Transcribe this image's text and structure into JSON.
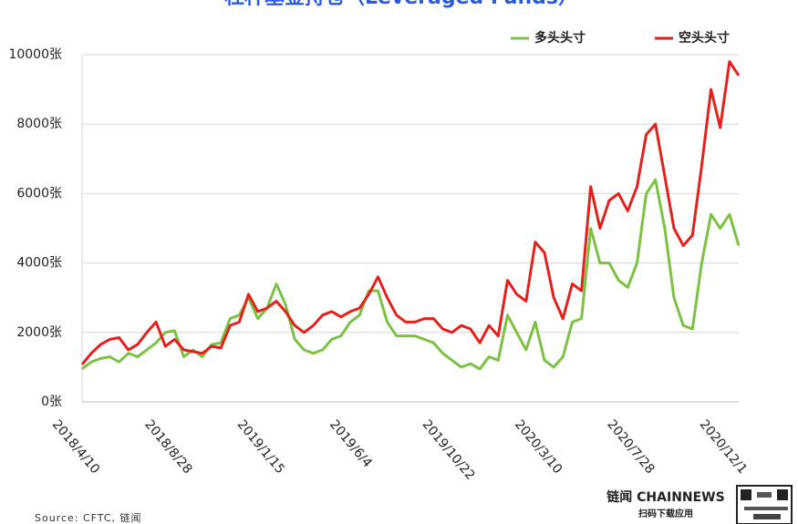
{
  "chart_data": {
    "type": "line",
    "title": "杠杆基金持仓（Leveraged Funds）",
    "categories": [
      "2018/4/10",
      null,
      null,
      null,
      null,
      null,
      null,
      null,
      null,
      null,
      "2018/8/28",
      null,
      null,
      null,
      null,
      null,
      null,
      null,
      null,
      null,
      "2019/1/15",
      null,
      null,
      null,
      null,
      null,
      null,
      null,
      null,
      null,
      "2019/6/4",
      null,
      null,
      null,
      null,
      null,
      null,
      null,
      null,
      null,
      "2019/10/22",
      null,
      null,
      null,
      null,
      null,
      null,
      null,
      null,
      null,
      "2020/3/10",
      null,
      null,
      null,
      null,
      null,
      null,
      null,
      null,
      null,
      "2020/7/28",
      null,
      null,
      null,
      null,
      null,
      null,
      null,
      null,
      null,
      "2020/12/1",
      null
    ],
    "series": [
      {
        "name": "多头头寸",
        "color": "#7cc242",
        "values": [
          950,
          1150,
          1250,
          1300,
          1150,
          1400,
          1300,
          1500,
          1700,
          2000,
          2050,
          1300,
          1500,
          1300,
          1650,
          1700,
          2400,
          2500,
          3000,
          2400,
          2700,
          3400,
          2800,
          1800,
          1500,
          1400,
          1500,
          1800,
          1900,
          2300,
          2500,
          3200,
          3200,
          2300,
          1900,
          1900,
          1900,
          1800,
          1700,
          1400,
          1200,
          1000,
          1100,
          950,
          1300,
          1200,
          2500,
          2000,
          1500,
          2300,
          1200,
          1000,
          1300,
          2300,
          2400,
          5000,
          4000,
          4000,
          3500,
          3300,
          4000,
          6000,
          6400,
          5000,
          3000,
          2200,
          2100,
          4000,
          5400,
          5000,
          5400,
          4500
        ]
      },
      {
        "name": "空头头寸",
        "color": "#e3211c",
        "values": [
          1080,
          1400,
          1650,
          1800,
          1850,
          1500,
          1650,
          2000,
          2300,
          1600,
          1800,
          1500,
          1450,
          1400,
          1600,
          1550,
          2200,
          2300,
          3100,
          2600,
          2700,
          2900,
          2600,
          2200,
          2000,
          2200,
          2500,
          2600,
          2450,
          2600,
          2700,
          3100,
          3600,
          3000,
          2500,
          2300,
          2300,
          2400,
          2400,
          2100,
          2000,
          2200,
          2100,
          1700,
          2200,
          1900,
          3500,
          3100,
          2900,
          4600,
          4300,
          3000,
          2400,
          3400,
          3200,
          6200,
          5000,
          5800,
          6000,
          5500,
          6200,
          7700,
          8000,
          6500,
          5000,
          4500,
          4800,
          6800,
          9000,
          7900,
          9800,
          9400
        ]
      }
    ],
    "ylim": [
      0,
      10000
    ],
    "yticks": [
      {
        "value": 0,
        "label": "0张"
      },
      {
        "value": 2000,
        "label": "2000张"
      },
      {
        "value": 4000,
        "label": "4000张"
      },
      {
        "value": 6000,
        "label": "6000张"
      },
      {
        "value": 8000,
        "label": "8000张"
      },
      {
        "value": 10000,
        "label": "10000张"
      }
    ],
    "grid": true,
    "legend": "top-right"
  },
  "footer": {
    "source": "Source: CFTC, 链闻",
    "brand": "链闻 CHAINNEWS",
    "brand_sub": "扫码下载应用"
  }
}
